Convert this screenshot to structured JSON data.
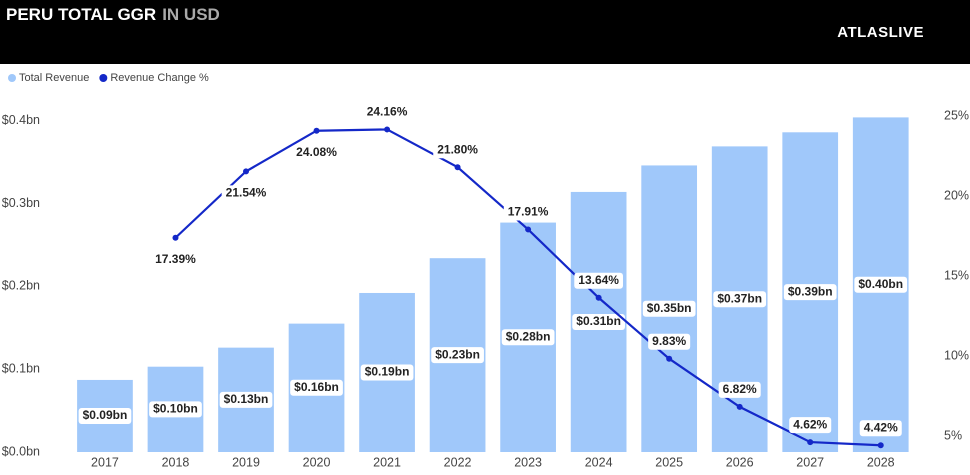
{
  "chart_data": {
    "type": "combo",
    "title": "PERU TOTAL GGR",
    "subtitle": "IN USD",
    "logo": "ATLASLIVE",
    "categories": [
      "2017",
      "2018",
      "2019",
      "2020",
      "2021",
      "2022",
      "2023",
      "2024",
      "2025",
      "2026",
      "2027",
      "2028"
    ],
    "series": [
      {
        "name": "Total Revenue",
        "type": "bar",
        "color": "#a0c8fa",
        "values": [
          0.087,
          0.103,
          0.126,
          0.155,
          0.192,
          0.234,
          0.277,
          0.314,
          0.346,
          0.369,
          0.386,
          0.404
        ],
        "value_labels": [
          "$0.09bn",
          "$0.10bn",
          "$0.13bn",
          "$0.16bn",
          "$0.19bn",
          "$0.23bn",
          "$0.28bn",
          "$0.31bn",
          "$0.35bn",
          "$0.37bn",
          "$0.39bn",
          "$0.40bn"
        ]
      },
      {
        "name": "Revenue Change %",
        "type": "line",
        "color": "#1428c8",
        "axis": "y2",
        "values": [
          null,
          17.39,
          21.54,
          24.08,
          24.16,
          21.8,
          17.91,
          13.64,
          9.83,
          6.82,
          4.62,
          4.42
        ],
        "value_labels": [
          null,
          "17.39%",
          "21.54%",
          "24.08%",
          "24.16%",
          "21.80%",
          "17.91%",
          "13.64%",
          "9.83%",
          "6.82%",
          "4.62%",
          "4.42%"
        ]
      }
    ],
    "ylim": [
      0,
      0.425
    ],
    "yticks": [
      {
        "value": 0,
        "label": "$0.0bn"
      },
      {
        "value": 0.1,
        "label": "$0.1bn"
      },
      {
        "value": 0.2,
        "label": "$0.2bn"
      },
      {
        "value": 0.3,
        "label": "$0.3bn"
      },
      {
        "value": 0.4,
        "label": "$0.4bn"
      }
    ],
    "y2lim": [
      4,
      26
    ],
    "y2ticks": [
      {
        "value": 5,
        "label": "5%"
      },
      {
        "value": 10,
        "label": "10%"
      },
      {
        "value": 15,
        "label": "15%"
      },
      {
        "value": 20,
        "label": "20%"
      },
      {
        "value": 25,
        "label": "25%"
      }
    ],
    "legend": "top-left"
  }
}
